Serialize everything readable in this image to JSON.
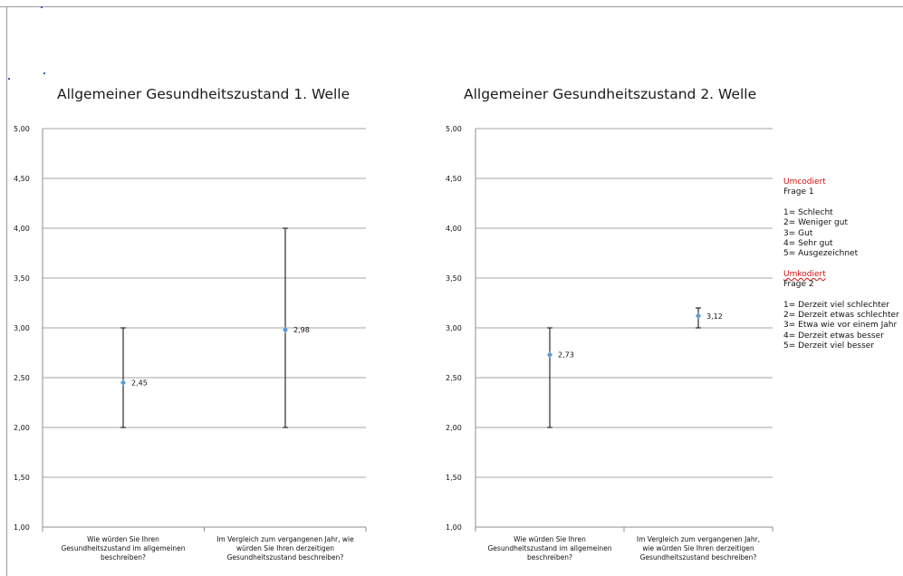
{
  "chart_data": [
    {
      "type": "scatter",
      "title": "Allgemeiner Gesundheitszustand 1. Welle",
      "ylim": [
        1.0,
        5.0
      ],
      "yticks": [
        "1,00",
        "1,50",
        "2,00",
        "2,50",
        "3,00",
        "3,50",
        "4,00",
        "4,50",
        "5,00"
      ],
      "categories": [
        [
          "Wie würden Sie Ihren",
          "Gesundheitszustand im allgemeinen",
          "beschreiben?"
        ],
        [
          "Im Vergleich zum vergangenen Jahr, wie",
          "würden Sie Ihren derzeitigen",
          "Gesundheitszustand beschreiben?"
        ]
      ],
      "values": [
        2.45,
        2.98
      ],
      "labels": [
        "2,45",
        "2,98"
      ],
      "error_low": [
        2.0,
        2.0
      ],
      "error_high": [
        3.0,
        4.0
      ],
      "grid": true,
      "marker_color": "#5b9bd5"
    },
    {
      "type": "scatter",
      "title": "Allgemeiner Gesundheitszustand 2. Welle",
      "ylim": [
        1.0,
        5.0
      ],
      "yticks": [
        "1,00",
        "1,50",
        "2,00",
        "2,50",
        "3,00",
        "3,50",
        "4,00",
        "4,50",
        "5,00"
      ],
      "categories": [
        [
          "Wie würden Sie Ihren",
          "Gesundheitszustand im allgemeinen",
          "beschreiben?"
        ],
        [
          "Im Vergleich zum vergangenen Jahr,",
          "wie würden Sie Ihren derzeitigen",
          "Gesundheitszustand beschreiben?"
        ]
      ],
      "values": [
        2.73,
        3.12
      ],
      "labels": [
        "2,73",
        "3,12"
      ],
      "error_low": [
        2.0,
        3.0
      ],
      "error_high": [
        3.0,
        3.2
      ],
      "grid": true,
      "marker_color": "#5b9bd5"
    }
  ],
  "notes": {
    "q1_heading": "Umcodiert",
    "q1_label": "Frage 1",
    "q1_items": [
      "1= Schlecht",
      "2= Weniger gut",
      "3= Gut",
      "4= Sehr gut",
      "5= Ausgezeichnet"
    ],
    "q2_heading": "Umkodiert",
    "q2_label": "Frage 2",
    "q2_items": [
      "1= Derzeit viel schlechter",
      "2= Derzeit etwas schlechter",
      "3= Etwa wie vor einem Jahr",
      "4= Derzeit etwas besser",
      "5= Derzeit viel besser"
    ]
  },
  "colors": {
    "heading_red": "#d01010",
    "grid": "#a6a6a6"
  }
}
